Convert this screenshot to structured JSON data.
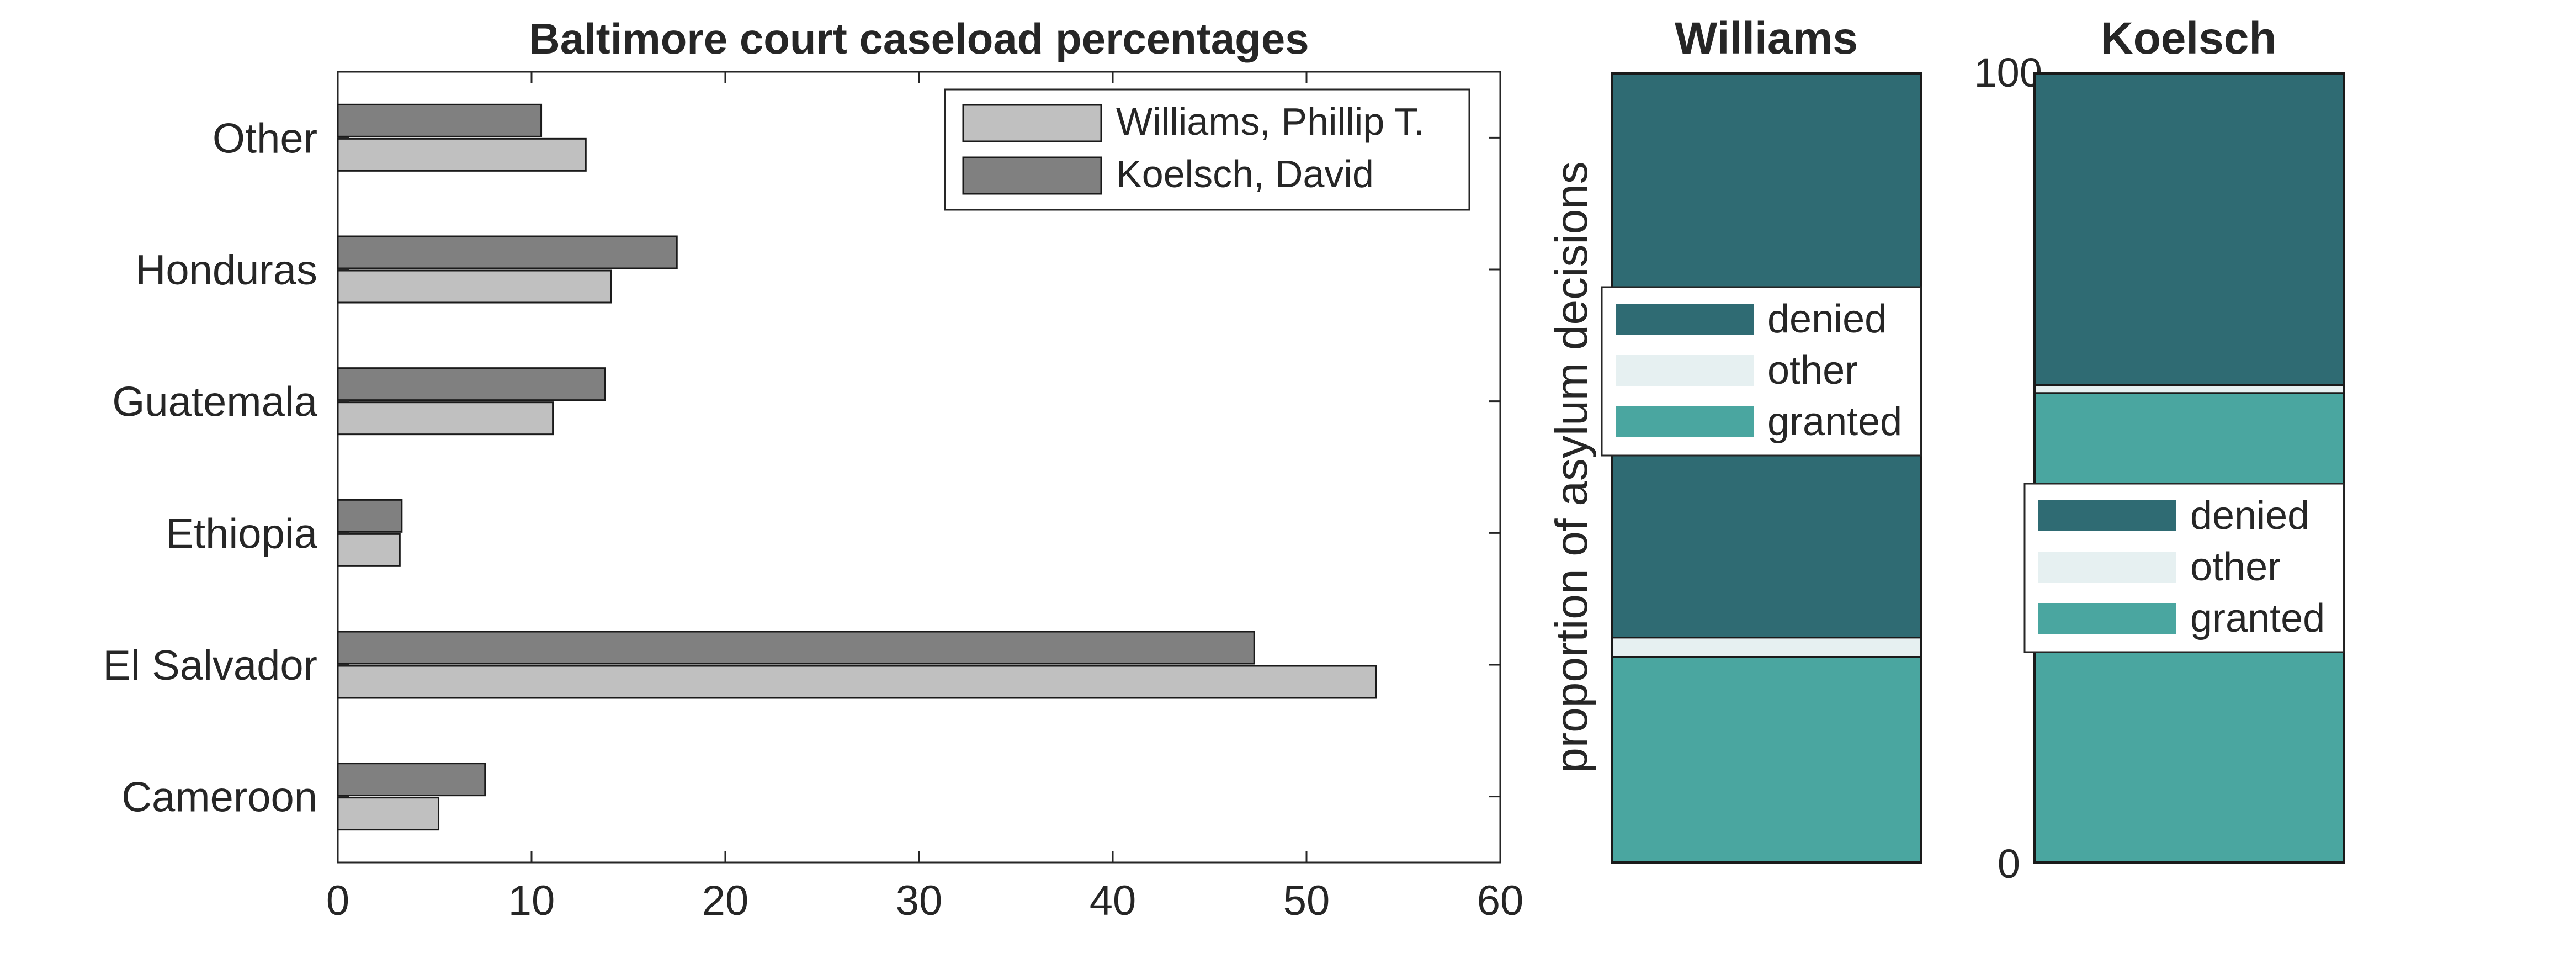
{
  "chart_data": [
    {
      "type": "bar",
      "orientation": "horizontal",
      "title": "Baltimore court caseload percentages",
      "categories": [
        "Cameroon",
        "El Salvador",
        "Ethiopia",
        "Guatemala",
        "Honduras",
        "Other"
      ],
      "series": [
        {
          "name": "Williams, Phillip T.",
          "color": "#c0c0c0",
          "values": [
            5.2,
            53.6,
            3.2,
            11.1,
            14.1,
            12.8
          ]
        },
        {
          "name": "Koelsch, David",
          "color": "#808080",
          "values": [
            7.6,
            47.3,
            3.3,
            13.8,
            17.5,
            10.5
          ]
        }
      ],
      "xlim": [
        0,
        60
      ],
      "xticks": [
        "0",
        "10",
        "20",
        "30",
        "40",
        "50",
        "60"
      ],
      "legend": "top-right",
      "grid": false
    },
    {
      "type": "bar",
      "stacked": true,
      "title": "Williams",
      "ylabel": "proportion of asylum decisions",
      "ylim": [
        0,
        100
      ],
      "segments": [
        {
          "name": "granted",
          "color": "#4aa6a0",
          "value": 26
        },
        {
          "name": "other",
          "color": "#e6f0f1",
          "value": 2.5
        },
        {
          "name": "denied",
          "color": "#2f6b73",
          "value": 71.5
        }
      ],
      "legend_order": [
        "denied",
        "other",
        "granted"
      ],
      "legend": "middle"
    },
    {
      "type": "bar",
      "stacked": true,
      "title": "Koelsch",
      "ylim": [
        0,
        100
      ],
      "yticks": [
        "0",
        "100"
      ],
      "segments": [
        {
          "name": "granted",
          "color": "#4aa6a0",
          "value": 59.5
        },
        {
          "name": "other",
          "color": "#e6f0f1",
          "value": 1
        },
        {
          "name": "denied",
          "color": "#2f6b73",
          "value": 39.5
        }
      ],
      "legend_order": [
        "denied",
        "other",
        "granted"
      ],
      "legend": "middle"
    }
  ]
}
